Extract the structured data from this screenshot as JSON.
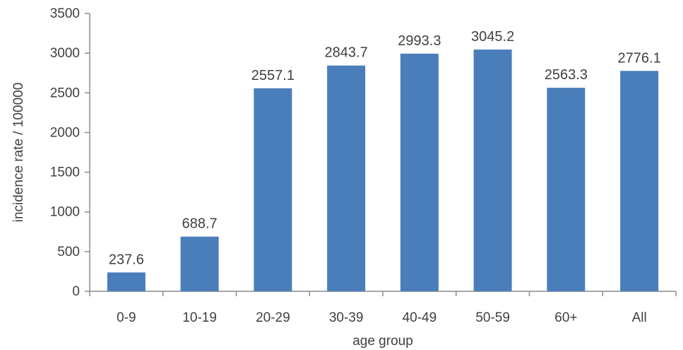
{
  "chart_data": {
    "type": "bar",
    "categories": [
      "0-9",
      "10-19",
      "20-29",
      "30-39",
      "40-49",
      "50-59",
      "60+",
      "All"
    ],
    "values": [
      237.6,
      688.7,
      2557.1,
      2843.7,
      2993.3,
      3045.2,
      2563.3,
      2776.1
    ],
    "data_labels": [
      "237.6",
      "688.7",
      "2557.1",
      "2843.7",
      "2993.3",
      "3045.2",
      "2563.3",
      "2776.1"
    ],
    "title": "",
    "xlabel": "age group",
    "ylabel": "incidence rate / 100000",
    "ylim": [
      0,
      3500
    ],
    "yticks": [
      0,
      500,
      1000,
      1500,
      2000,
      2500,
      3000,
      3500
    ],
    "ytick_labels": [
      "0",
      "500",
      "1000",
      "1500",
      "2000",
      "2500",
      "3000",
      "3500"
    ],
    "grid": false,
    "legend": "none",
    "bar_color": "#4a7ebb"
  }
}
